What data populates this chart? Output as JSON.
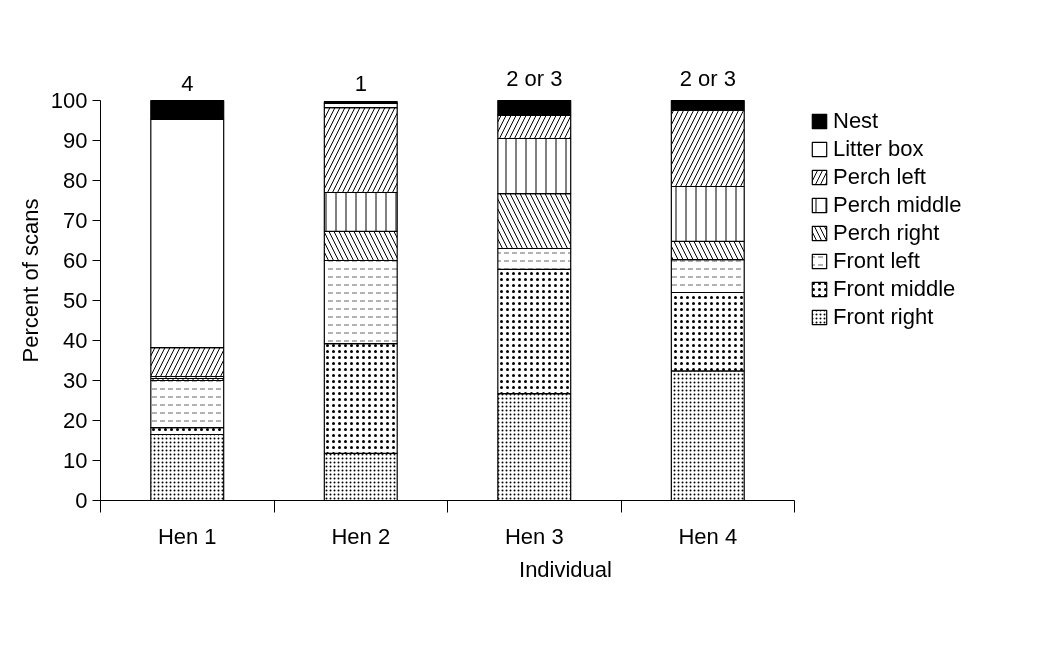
{
  "chart_data": {
    "type": "bar",
    "stacked": true,
    "xlabel": "Individual",
    "ylabel": "Percent of scans",
    "categories": [
      "Hen 1",
      "Hen 2",
      "Hen 3",
      "Hen 4"
    ],
    "series": [
      {
        "name": "Front right",
        "color": "#ffffff",
        "values": [
          16.5,
          11.8,
          26.7,
          32.4
        ]
      },
      {
        "name": "Front middle",
        "color": "#ffffff",
        "values": [
          1.7,
          27.4,
          31.1,
          19.6
        ]
      },
      {
        "name": "Front left",
        "color": "#ffffff",
        "values": [
          11.8,
          20.8,
          5.2,
          8.2
        ]
      },
      {
        "name": "Perch right",
        "color": "#ffffff",
        "values": [
          0.5,
          7.3,
          13.7,
          4.6
        ]
      },
      {
        "name": "Perch middle",
        "color": "#ffffff",
        "values": [
          0.5,
          9.7,
          13.8,
          13.7
        ]
      },
      {
        "name": "Perch left",
        "color": "#ffffff",
        "values": [
          7.2,
          21.2,
          5.8,
          19.0
        ]
      },
      {
        "name": "Litter box",
        "color": "#ffffff",
        "values": [
          57.1,
          1.1,
          0,
          0
        ]
      },
      {
        "name": "Nest",
        "color": "#000000",
        "values": [
          4.7,
          0.4,
          3.7,
          2.5
        ]
      }
    ],
    "ylim": [
      0,
      100
    ],
    "yticks": [
      0,
      10,
      20,
      30,
      40,
      50,
      60,
      70,
      80,
      90,
      100
    ],
    "grid": false,
    "legend": "right",
    "annotations": [
      "4",
      "1",
      "2 or 3",
      "2 or 3"
    ]
  }
}
